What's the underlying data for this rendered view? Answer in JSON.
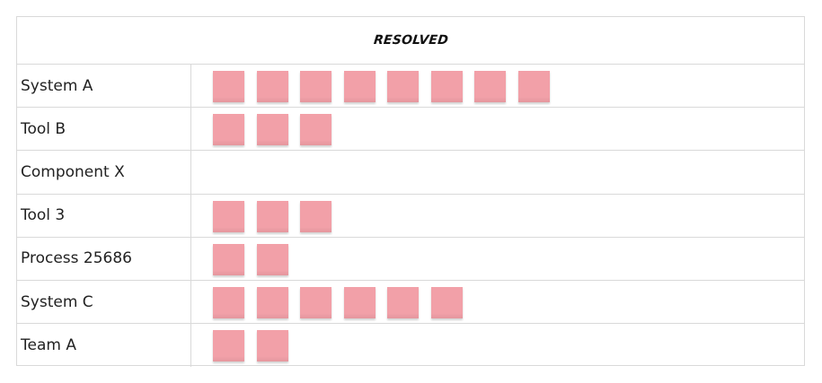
{
  "header": {
    "title": "RESOLVED"
  },
  "note_color": "#f2a0a8",
  "rows": [
    {
      "label": "System A",
      "note_count": 8
    },
    {
      "label": "Tool B",
      "note_count": 3
    },
    {
      "label": "Component X",
      "note_count": 0
    },
    {
      "label": "Tool 3",
      "note_count": 3
    },
    {
      "label": "Process 25686",
      "note_count": 2
    },
    {
      "label": "System C",
      "note_count": 6
    },
    {
      "label": "Team A",
      "note_count": 2
    }
  ]
}
